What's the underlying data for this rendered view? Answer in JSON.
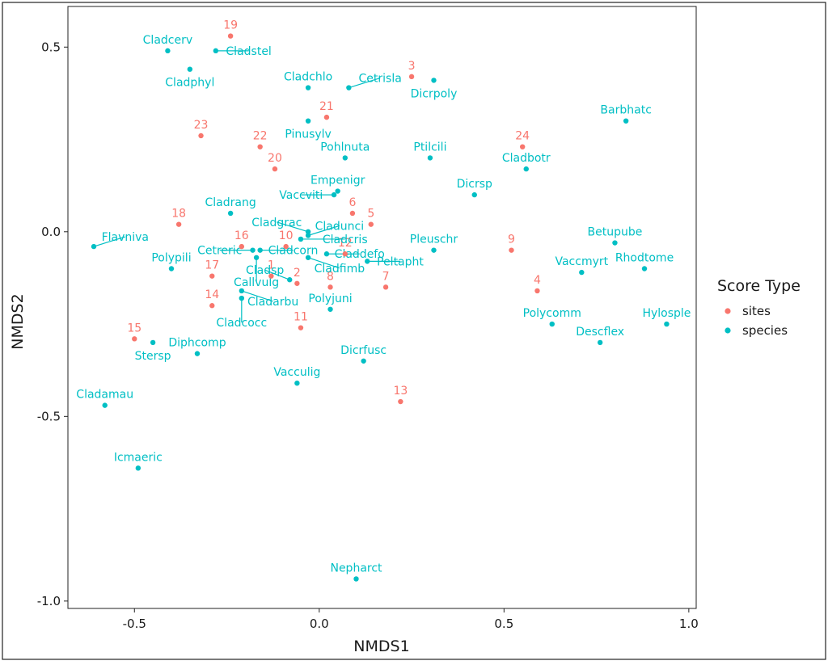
{
  "chart_data": {
    "type": "scatter",
    "xlabel": "NMDS1",
    "ylabel": "NMDS2",
    "xlim": [
      -0.68,
      1.02
    ],
    "ylim": [
      -1.02,
      0.61
    ],
    "xticks": [
      -0.5,
      0.0,
      0.5,
      1.0
    ],
    "xtick_labels": [
      "-0.5",
      "0.0",
      "0.5",
      "1.0"
    ],
    "yticks": [
      0.5,
      0.0,
      -0.5,
      -1.0
    ],
    "ytick_labels": [
      "0.5",
      "0.0",
      "-0.5",
      "-1.0"
    ],
    "grid": false,
    "legend": {
      "title": "Score Type",
      "position": "right",
      "entries": [
        {
          "name": "sites",
          "color": "#F8766D"
        },
        {
          "name": "species",
          "color": "#00BFC4"
        }
      ]
    },
    "series": [
      {
        "name": "sites",
        "color": "#F8766D",
        "points": [
          {
            "label": "1",
            "x": -0.13,
            "y": -0.12
          },
          {
            "label": "2",
            "x": -0.06,
            "y": -0.14
          },
          {
            "label": "3",
            "x": 0.25,
            "y": 0.42
          },
          {
            "label": "4",
            "x": 0.59,
            "y": -0.16
          },
          {
            "label": "5",
            "x": 0.14,
            "y": 0.02
          },
          {
            "label": "6",
            "x": 0.09,
            "y": 0.05
          },
          {
            "label": "7",
            "x": 0.18,
            "y": -0.15
          },
          {
            "label": "8",
            "x": 0.03,
            "y": -0.15
          },
          {
            "label": "9",
            "x": 0.52,
            "y": -0.05
          },
          {
            "label": "10",
            "x": -0.09,
            "y": -0.04
          },
          {
            "label": "11",
            "x": -0.05,
            "y": -0.26
          },
          {
            "label": "12",
            "x": 0.07,
            "y": -0.06
          },
          {
            "label": "13",
            "x": 0.22,
            "y": -0.46
          },
          {
            "label": "14",
            "x": -0.29,
            "y": -0.2
          },
          {
            "label": "15",
            "x": -0.5,
            "y": -0.29
          },
          {
            "label": "16",
            "x": -0.21,
            "y": -0.04
          },
          {
            "label": "17",
            "x": -0.29,
            "y": -0.12
          },
          {
            "label": "18",
            "x": -0.38,
            "y": 0.02
          },
          {
            "label": "19",
            "x": -0.24,
            "y": 0.53
          },
          {
            "label": "20",
            "x": -0.12,
            "y": 0.17
          },
          {
            "label": "21",
            "x": 0.02,
            "y": 0.31
          },
          {
            "label": "22",
            "x": -0.16,
            "y": 0.23
          },
          {
            "label": "23",
            "x": -0.32,
            "y": 0.26
          },
          {
            "label": "24",
            "x": 0.55,
            "y": 0.23
          }
        ]
      },
      {
        "name": "species",
        "color": "#00BFC4",
        "points": [
          {
            "label": "Callvulg",
            "x": -0.17,
            "y": -0.07
          },
          {
            "label": "Empenigr",
            "x": 0.05,
            "y": 0.11
          },
          {
            "label": "Rhodtome",
            "x": 0.88,
            "y": -0.1
          },
          {
            "label": "Vaccmyrt",
            "x": 0.71,
            "y": -0.11
          },
          {
            "label": "Vaccviti",
            "x": 0.04,
            "y": 0.1
          },
          {
            "label": "Pinusylv",
            "x": -0.03,
            "y": 0.3
          },
          {
            "label": "Descflex",
            "x": 0.76,
            "y": -0.3
          },
          {
            "label": "Betupube",
            "x": 0.8,
            "y": -0.03
          },
          {
            "label": "Vacculig",
            "x": -0.06,
            "y": -0.41
          },
          {
            "label": "Diphcomp",
            "x": -0.33,
            "y": -0.33
          },
          {
            "label": "Dicrsp",
            "x": 0.42,
            "y": 0.1
          },
          {
            "label": "Dicrfusc",
            "x": 0.12,
            "y": -0.35
          },
          {
            "label": "Dicrpoly",
            "x": 0.31,
            "y": 0.41
          },
          {
            "label": "Hylosple",
            "x": 0.94,
            "y": -0.25
          },
          {
            "label": "Pleuschr",
            "x": 0.31,
            "y": -0.05
          },
          {
            "label": "Polypili",
            "x": -0.4,
            "y": -0.1
          },
          {
            "label": "Polyjuni",
            "x": 0.03,
            "y": -0.21
          },
          {
            "label": "Polycomm",
            "x": 0.63,
            "y": -0.25
          },
          {
            "label": "Pohlnuta",
            "x": 0.07,
            "y": 0.2
          },
          {
            "label": "Ptilcili",
            "x": 0.3,
            "y": 0.2
          },
          {
            "label": "Barbhatc",
            "x": 0.83,
            "y": 0.3
          },
          {
            "label": "Cladarbu",
            "x": -0.21,
            "y": -0.16
          },
          {
            "label": "Cladrang",
            "x": -0.24,
            "y": 0.05
          },
          {
            "label": "Cladstel",
            "x": -0.28,
            "y": 0.49
          },
          {
            "label": "Cladunci",
            "x": -0.03,
            "y": -0.01
          },
          {
            "label": "Cladcocc",
            "x": -0.21,
            "y": -0.18
          },
          {
            "label": "Cladcorn",
            "x": -0.16,
            "y": -0.05
          },
          {
            "label": "Cladgrac",
            "x": -0.03,
            "y": 0.0
          },
          {
            "label": "Cladfimb",
            "x": -0.03,
            "y": -0.07
          },
          {
            "label": "Cladcris",
            "x": -0.05,
            "y": -0.02
          },
          {
            "label": "Cladchlo",
            "x": -0.03,
            "y": 0.39
          },
          {
            "label": "Cladbotr",
            "x": 0.56,
            "y": 0.17
          },
          {
            "label": "Cladamau",
            "x": -0.58,
            "y": -0.47
          },
          {
            "label": "Cladsp",
            "x": -0.08,
            "y": -0.13
          },
          {
            "label": "Cetreric",
            "x": -0.18,
            "y": -0.05
          },
          {
            "label": "Cetrisla",
            "x": 0.08,
            "y": 0.39
          },
          {
            "label": "Flavniva",
            "x": -0.61,
            "y": -0.04
          },
          {
            "label": "Nepharct",
            "x": 0.1,
            "y": -0.94
          },
          {
            "label": "Stersp",
            "x": -0.45,
            "y": -0.3
          },
          {
            "label": "Peltapht",
            "x": 0.13,
            "y": -0.08
          },
          {
            "label": "Icmaeric",
            "x": -0.49,
            "y": -0.64
          },
          {
            "label": "Cladcerv",
            "x": -0.41,
            "y": 0.49
          },
          {
            "label": "Claddefo",
            "x": 0.02,
            "y": -0.06
          },
          {
            "label": "Cladphyl",
            "x": -0.35,
            "y": 0.44
          }
        ]
      }
    ]
  }
}
